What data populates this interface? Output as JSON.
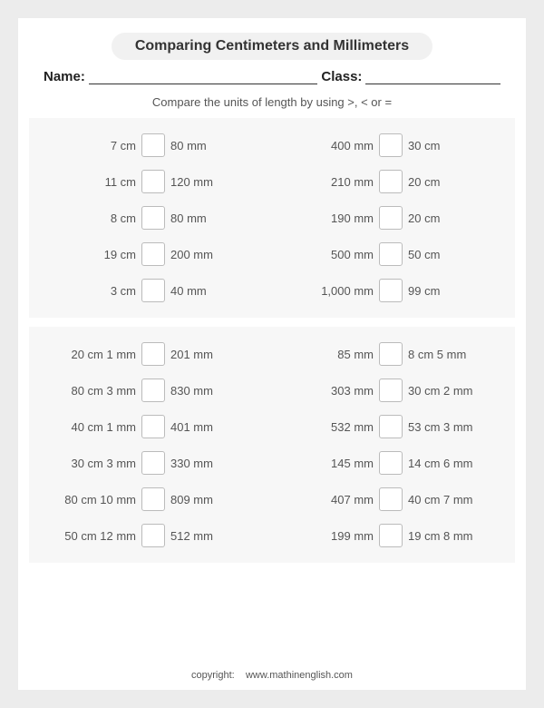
{
  "title": "Comparing Centimeters and Millimeters",
  "name_label": "Name:",
  "class_label": "Class:",
  "instruction": "Compare the units of length by using >, < or =",
  "section1": [
    {
      "l": "7 cm",
      "r": "80 mm"
    },
    {
      "l": "400 mm",
      "r": "30 cm"
    },
    {
      "l": "11 cm",
      "r": "120 mm"
    },
    {
      "l": "210 mm",
      "r": "20 cm"
    },
    {
      "l": "8 cm",
      "r": "80 mm"
    },
    {
      "l": "190 mm",
      "r": "20 cm"
    },
    {
      "l": "19 cm",
      "r": "200 mm"
    },
    {
      "l": "500 mm",
      "r": "50 cm"
    },
    {
      "l": "3 cm",
      "r": "40 mm"
    },
    {
      "l": "1,000 mm",
      "r": "99 cm"
    }
  ],
  "section2": [
    {
      "l": "20 cm   1 mm",
      "r": "201 mm"
    },
    {
      "l": "85 mm",
      "r": "8 cm 5 mm"
    },
    {
      "l": "80 cm   3 mm",
      "r": "830 mm"
    },
    {
      "l": "303 mm",
      "r": "30 cm 2 mm"
    },
    {
      "l": "40 cm   1 mm",
      "r": "401 mm"
    },
    {
      "l": "532 mm",
      "r": "53 cm 3 mm"
    },
    {
      "l": "30 cm   3 mm",
      "r": "330 mm"
    },
    {
      "l": "145 mm",
      "r": "14 cm 6 mm"
    },
    {
      "l": "80 cm 10 mm",
      "r": "809 mm"
    },
    {
      "l": "407 mm",
      "r": "40 cm 7 mm"
    },
    {
      "l": "50 cm 12 mm",
      "r": "512 mm"
    },
    {
      "l": "199 mm",
      "r": "19 cm 8 mm"
    }
  ],
  "copyright_label": "copyright:",
  "copyright_site": "www.mathinenglish.com"
}
